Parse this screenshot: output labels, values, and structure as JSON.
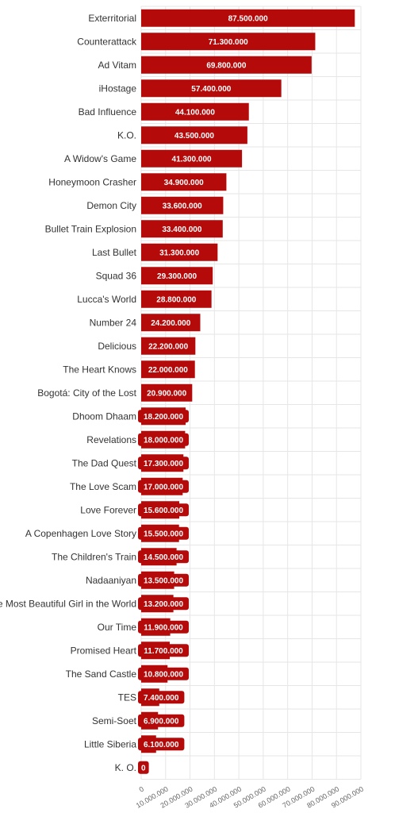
{
  "chart_data": {
    "type": "bar",
    "orientation": "horizontal",
    "title": "",
    "xlabel": "",
    "ylabel": "",
    "xlim": [
      0,
      90000000
    ],
    "grid": true,
    "bar_color": "#b50a0a",
    "label_color": "#ffffff",
    "x_tick_labels": [
      "0",
      "10.000.000",
      "20.000.000",
      "30.000.000",
      "40.000.000",
      "50.000.000",
      "60.000.000",
      "70.000.000",
      "80.000.000",
      "90.000.000"
    ],
    "categories": [
      "Exterritorial",
      "Counterattack",
      "Ad Vitam",
      "iHostage",
      "Bad Influence",
      "K.O.",
      "A Widow's Game",
      "Honeymoon Crasher",
      "Demon City",
      "Bullet Train Explosion",
      "Last Bullet",
      "Squad 36",
      "Lucca's World",
      "Number 24",
      "Delicious",
      "The Heart Knows",
      "Bogotá: City of the Lost",
      "Dhoom Dhaam",
      "Revelations",
      "The Dad Quest",
      "The Love Scam",
      "Love Forever",
      "A Copenhagen Love Story",
      "The Children's Train",
      "Nadaaniyan",
      "The Most Beautiful Girl in the World",
      "Our Time",
      "Promised Heart",
      "The Sand Castle",
      "TES",
      "Semi-Soet",
      "Little Siberia",
      "K. O."
    ],
    "values": [
      87500000,
      71300000,
      69800000,
      57400000,
      44100000,
      43500000,
      41300000,
      34900000,
      33600000,
      33400000,
      31300000,
      29300000,
      28800000,
      24200000,
      22200000,
      22000000,
      20900000,
      18200000,
      18000000,
      17300000,
      17000000,
      15600000,
      15500000,
      14500000,
      13500000,
      13200000,
      11900000,
      11700000,
      10800000,
      7400000,
      6900000,
      6100000,
      0
    ],
    "value_labels": [
      "87.500.000",
      "71.300.000",
      "69.800.000",
      "57.400.000",
      "44.100.000",
      "43.500.000",
      "41.300.000",
      "34.900.000",
      "33.600.000",
      "33.400.000",
      "31.300.000",
      "29.300.000",
      "28.800.000",
      "24.200.000",
      "22.200.000",
      "22.000.000",
      "20.900.000",
      "18.200.000",
      "18.000.000",
      "17.300.000",
      "17.000.000",
      "15.600.000",
      "15.500.000",
      "14.500.000",
      "13.500.000",
      "13.200.000",
      "11.900.000",
      "11.700.000",
      "10.800.000",
      "7.400.000",
      "6.900.000",
      "6.100.000",
      "0"
    ]
  }
}
